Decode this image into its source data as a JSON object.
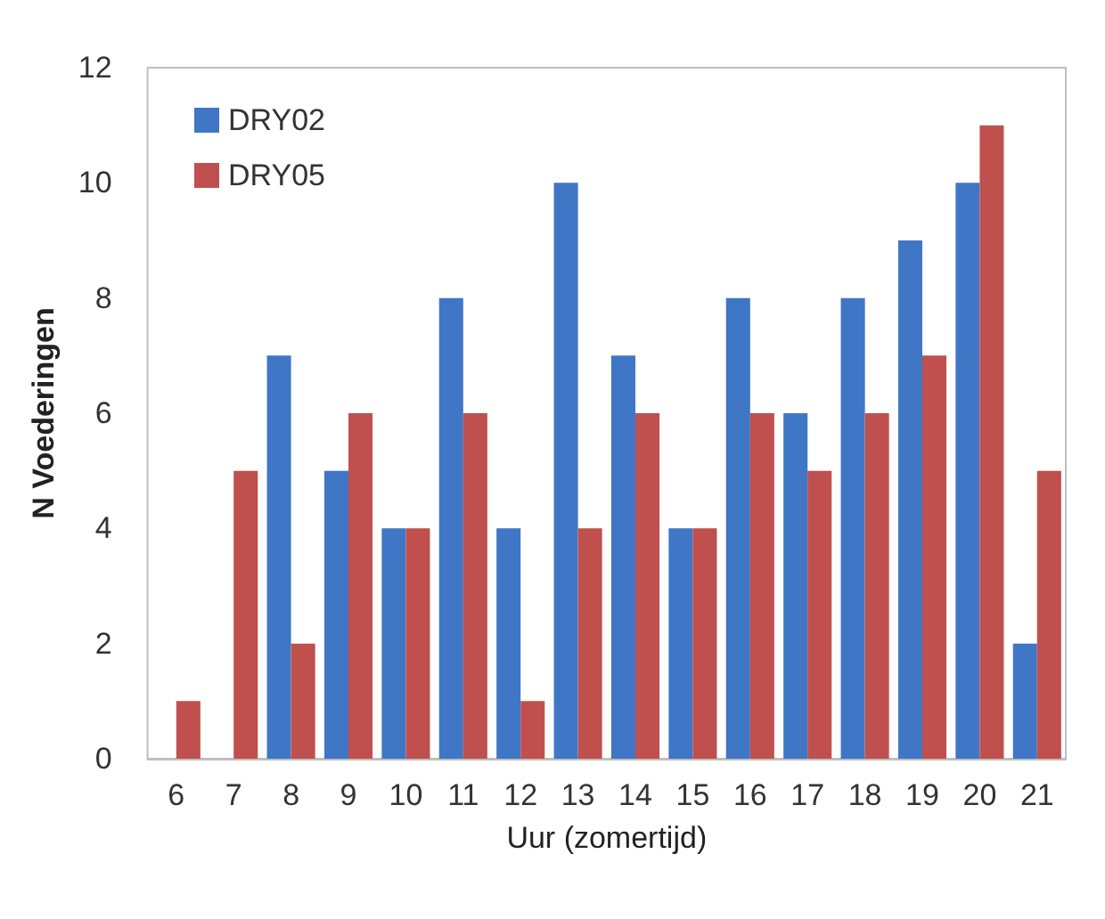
{
  "chart_data": {
    "type": "bar",
    "xlabel": "Uur (zomertijd)",
    "ylabel": "N Voederingen",
    "categories": [
      "6",
      "7",
      "8",
      "9",
      "10",
      "11",
      "12",
      "13",
      "14",
      "15",
      "16",
      "17",
      "18",
      "19",
      "20",
      "21"
    ],
    "series": [
      {
        "name": "DRY02",
        "color": "#3f76c6",
        "values": [
          0,
          0,
          7,
          5,
          4,
          8,
          4,
          10,
          7,
          4,
          8,
          6,
          8,
          9,
          10,
          2
        ]
      },
      {
        "name": "DRY05",
        "color": "#c0504d",
        "values": [
          1,
          5,
          2,
          6,
          4,
          6,
          1,
          4,
          6,
          4,
          6,
          5,
          6,
          7,
          11,
          5
        ]
      }
    ],
    "ylim": [
      0,
      12
    ],
    "yticks": [
      0,
      2,
      4,
      6,
      8,
      10,
      12
    ],
    "grid": false,
    "legend": "top left"
  }
}
